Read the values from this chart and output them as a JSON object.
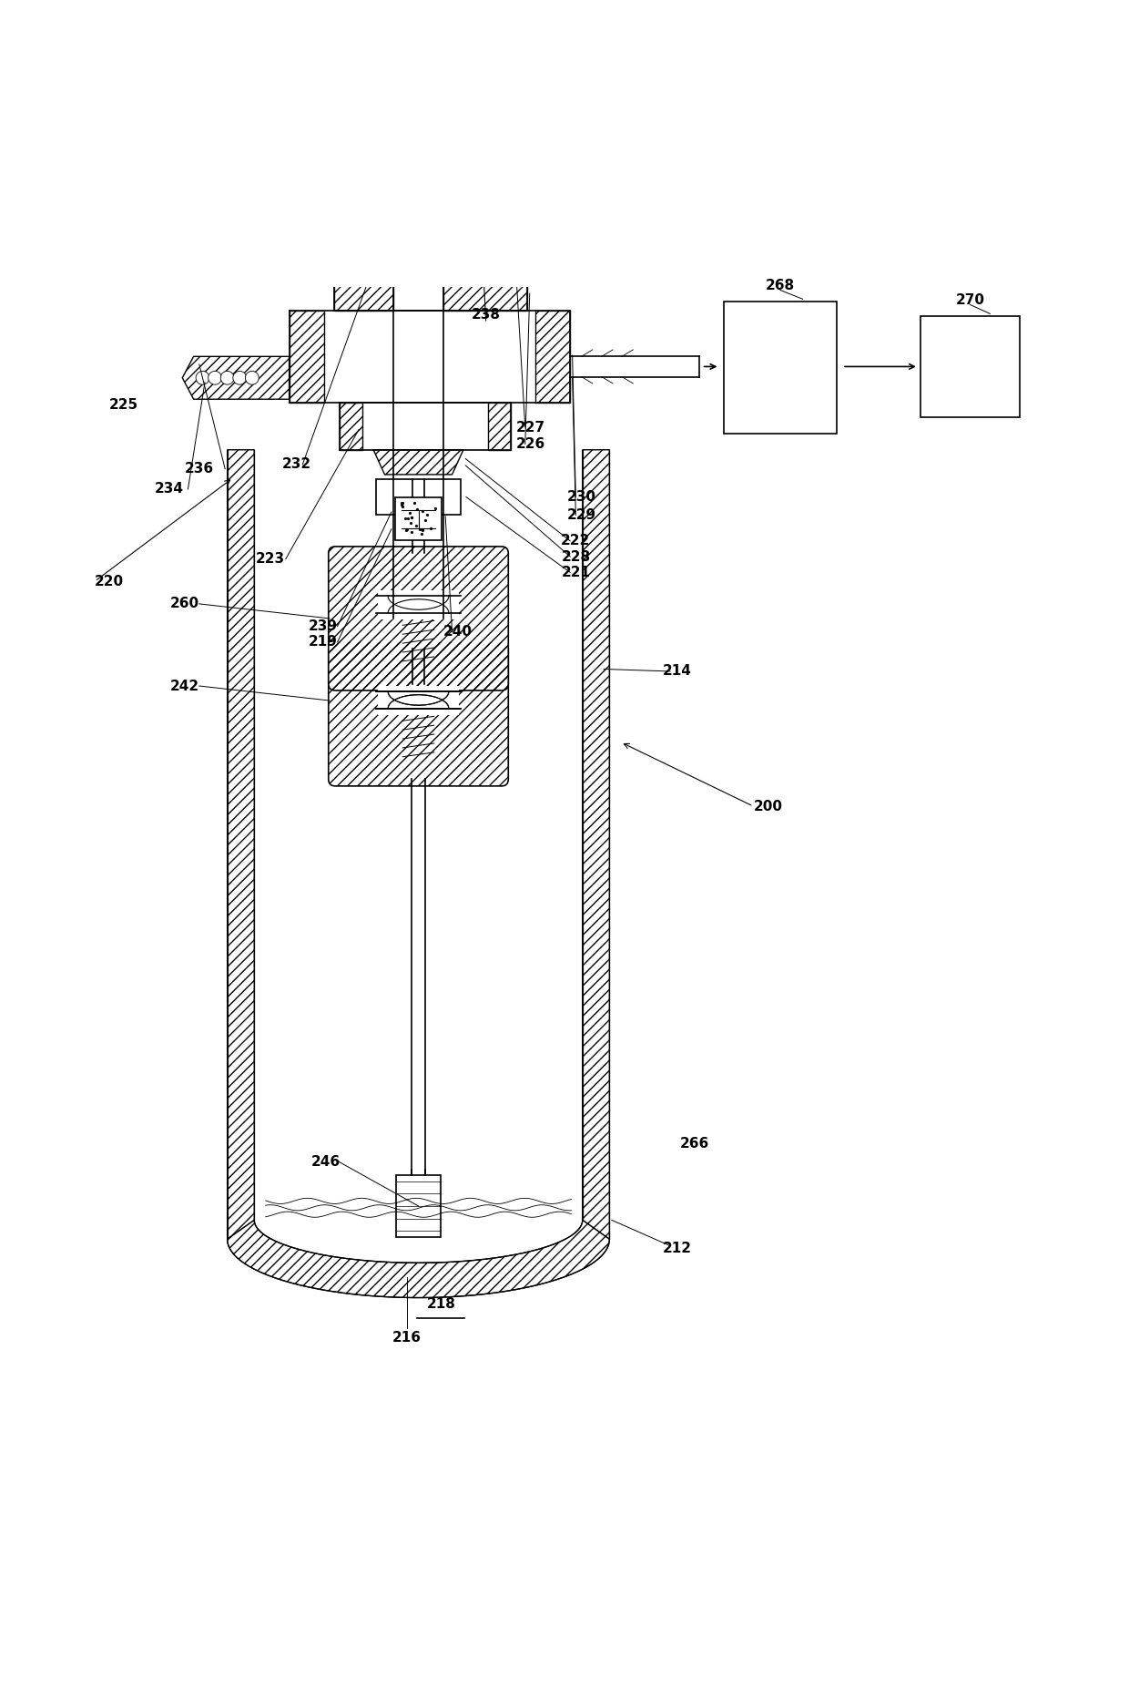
{
  "bg_color": "#ffffff",
  "line_color": "#000000",
  "fig_width": 12.4,
  "fig_height": 18.64,
  "dpi": 100
}
